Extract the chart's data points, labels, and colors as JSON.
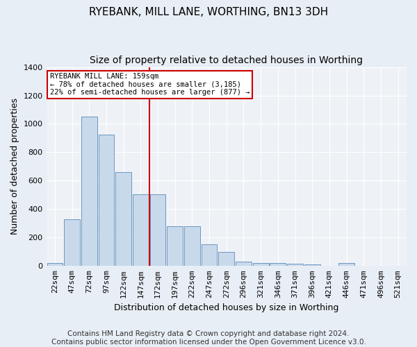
{
  "title": "RYEBANK, MILL LANE, WORTHING, BN13 3DH",
  "subtitle": "Size of property relative to detached houses in Worthing",
  "xlabel": "Distribution of detached houses by size in Worthing",
  "ylabel": "Number of detached properties",
  "categories": [
    "22sqm",
    "47sqm",
    "72sqm",
    "97sqm",
    "122sqm",
    "147sqm",
    "172sqm",
    "197sqm",
    "222sqm",
    "247sqm",
    "272sqm",
    "296sqm",
    "321sqm",
    "346sqm",
    "371sqm",
    "396sqm",
    "421sqm",
    "446sqm",
    "471sqm",
    "496sqm",
    "521sqm"
  ],
  "values": [
    20,
    330,
    1050,
    925,
    660,
    505,
    505,
    280,
    280,
    155,
    100,
    30,
    20,
    20,
    15,
    10,
    0,
    20,
    0,
    0,
    0
  ],
  "bar_color": "#c9d9ec",
  "bar_edge_color": "#5a8ab5",
  "marker_bin_index": 6,
  "annotation_line1": "RYEBANK MILL LANE: 159sqm",
  "annotation_line2": "← 78% of detached houses are smaller (3,185)",
  "annotation_line3": "22% of semi-detached houses are larger (877) →",
  "annotation_box_color": "#ffffff",
  "annotation_box_edge": "#cc0000",
  "vline_color": "#cc0000",
  "ylim": [
    0,
    1400
  ],
  "yticks": [
    0,
    200,
    400,
    600,
    800,
    1000,
    1200,
    1400
  ],
  "bg_color": "#e8eef5",
  "plot_bg_color": "#eef2f7",
  "footer": "Contains HM Land Registry data © Crown copyright and database right 2024.\nContains public sector information licensed under the Open Government Licence v3.0.",
  "title_fontsize": 11,
  "subtitle_fontsize": 10,
  "xlabel_fontsize": 9,
  "ylabel_fontsize": 9,
  "tick_fontsize": 8,
  "footer_fontsize": 7.5
}
